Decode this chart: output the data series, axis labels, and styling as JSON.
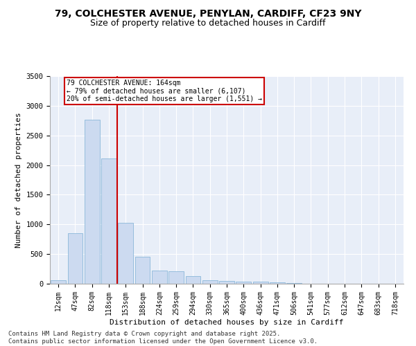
{
  "title_line1": "79, COLCHESTER AVENUE, PENYLAN, CARDIFF, CF23 9NY",
  "title_line2": "Size of property relative to detached houses in Cardiff",
  "xlabel": "Distribution of detached houses by size in Cardiff",
  "ylabel": "Number of detached properties",
  "bar_color": "#ccdaf0",
  "bar_edge_color": "#7bafd4",
  "categories": [
    "12sqm",
    "47sqm",
    "82sqm",
    "118sqm",
    "153sqm",
    "188sqm",
    "224sqm",
    "259sqm",
    "294sqm",
    "330sqm",
    "365sqm",
    "400sqm",
    "436sqm",
    "471sqm",
    "506sqm",
    "541sqm",
    "577sqm",
    "612sqm",
    "647sqm",
    "683sqm",
    "718sqm"
  ],
  "values": [
    55,
    850,
    2770,
    2110,
    1030,
    460,
    220,
    215,
    130,
    60,
    50,
    40,
    30,
    25,
    10,
    5,
    5,
    5,
    3,
    2,
    2
  ],
  "ylim": [
    0,
    3500
  ],
  "yticks": [
    0,
    500,
    1000,
    1500,
    2000,
    2500,
    3000,
    3500
  ],
  "vline_color": "#cc0000",
  "annotation_text": "79 COLCHESTER AVENUE: 164sqm\n← 79% of detached houses are smaller (6,107)\n20% of semi-detached houses are larger (1,551) →",
  "annotation_box_color": "#cc0000",
  "footer_line1": "Contains HM Land Registry data © Crown copyright and database right 2025.",
  "footer_line2": "Contains public sector information licensed under the Open Government Licence v3.0.",
  "background_color": "#e8eef8",
  "fig_bg_color": "#ffffff",
  "grid_color": "#ffffff"
}
